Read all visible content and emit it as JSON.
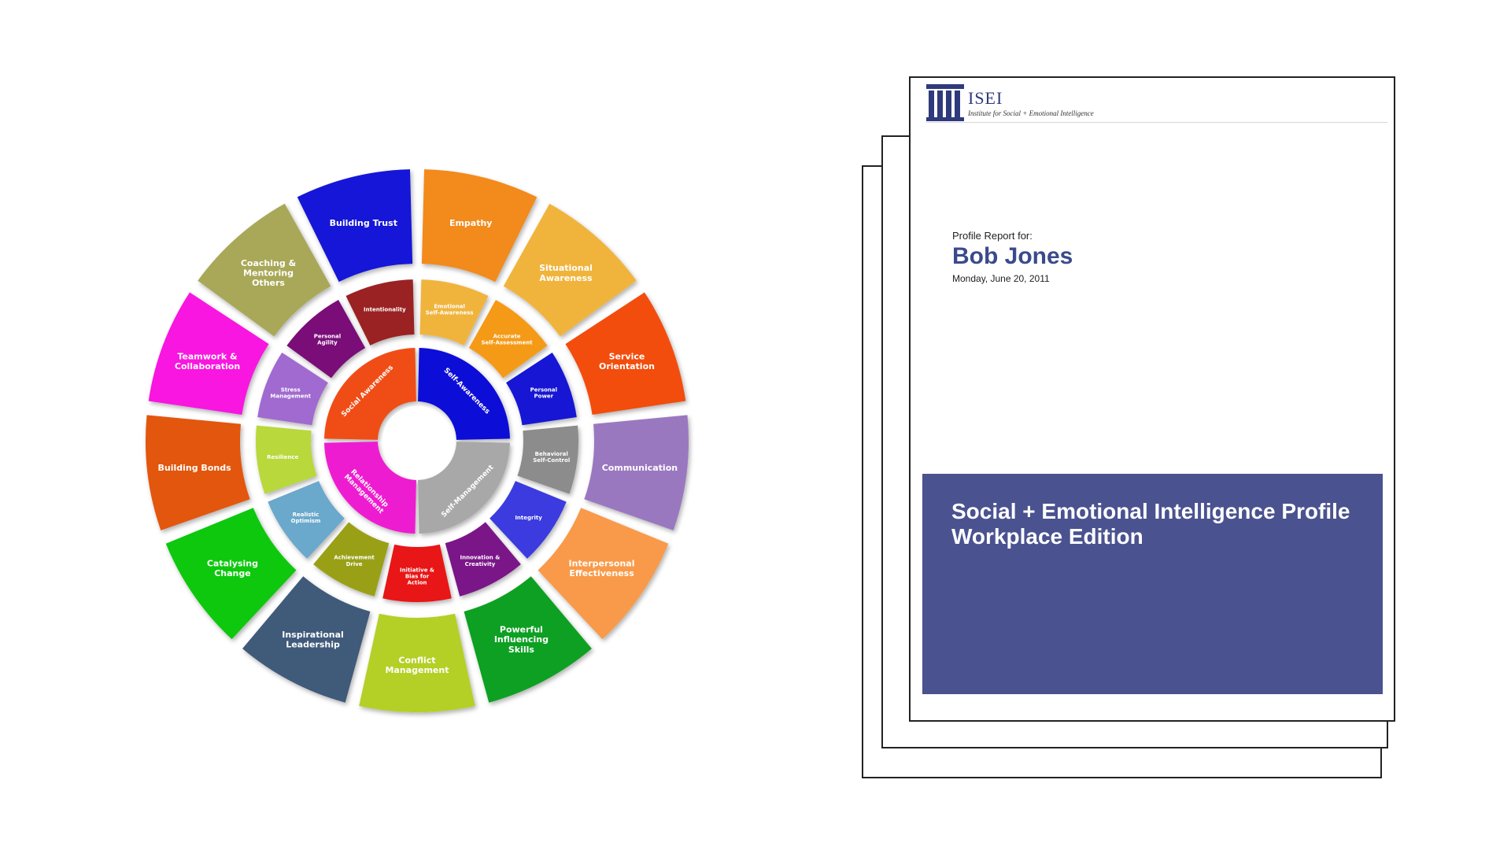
{
  "wheel": {
    "core": [
      {
        "label": "Self-Awareness",
        "color": "#0a0ad8"
      },
      {
        "label": "Self-Management",
        "color": "#a8a8a8"
      },
      {
        "label": "Relationship Management",
        "color": "#ee1bd0"
      },
      {
        "label": "Social Awareness",
        "color": "#f04e16"
      }
    ],
    "middle": [
      {
        "label": "Emotional Self-Awareness",
        "color": "#f0b43c"
      },
      {
        "label": "Accurate Self-Assessment",
        "color": "#f59a18"
      },
      {
        "label": "Personal Power",
        "color": "#1414d4"
      },
      {
        "label": "Behavioral Self-Control",
        "color": "#8c8c8c"
      },
      {
        "label": "Integrity",
        "color": "#3a3ae0"
      },
      {
        "label": "Innovation & Creativity",
        "color": "#7a1288"
      },
      {
        "label": "Initiative & Bias for Action",
        "color": "#e81414"
      },
      {
        "label": "Achievement Drive",
        "color": "#9aa018"
      },
      {
        "label": "Realistic Optimism",
        "color": "#6aa8cc"
      },
      {
        "label": "Resilience",
        "color": "#b8d83a"
      },
      {
        "label": "Stress Management",
        "color": "#a06ad0"
      },
      {
        "label": "Personal Agility",
        "color": "#7a1078"
      },
      {
        "label": "Intentionality",
        "color": "#9a2020"
      }
    ],
    "outer": [
      {
        "label": "Empathy",
        "color": "#f28a1e"
      },
      {
        "label": "Situational Awareness",
        "color": "#f0b43c"
      },
      {
        "label": "Service Orientation",
        "color": "#f24d0c"
      },
      {
        "label": "Communication",
        "color": "#9a78c0"
      },
      {
        "label": "Interpersonal Effectiveness",
        "color": "#f89a48"
      },
      {
        "label": "Powerful Influencing Skills",
        "color": "#0ca020"
      },
      {
        "label": "Conflict Management",
        "color": "#b4d028"
      },
      {
        "label": "Inspirational Leadership",
        "color": "#405a7a"
      },
      {
        "label": "Catalysing Change",
        "color": "#10c810"
      },
      {
        "label": "Building Bonds",
        "color": "#e2560c"
      },
      {
        "label": "Teamwork & Collaboration",
        "color": "#f812e0"
      },
      {
        "label": "Coaching & Mentoring Others",
        "color": "#a8a858"
      },
      {
        "label": "Building Trust",
        "color": "#1414d8"
      }
    ]
  },
  "report": {
    "logo_name": "ISEI",
    "logo_tagline": "Institute for Social + Emotional Intelligence",
    "profile_for": "Profile Report for:",
    "person_name": "Bob Jones",
    "date": "Monday, June 20, 2011",
    "title_line_1": "Social + Emotional Intelligence Profile",
    "title_line_2": "Workplace Edition",
    "title_box_color": "#4a5290",
    "brand_color": "#3b4a8c"
  }
}
